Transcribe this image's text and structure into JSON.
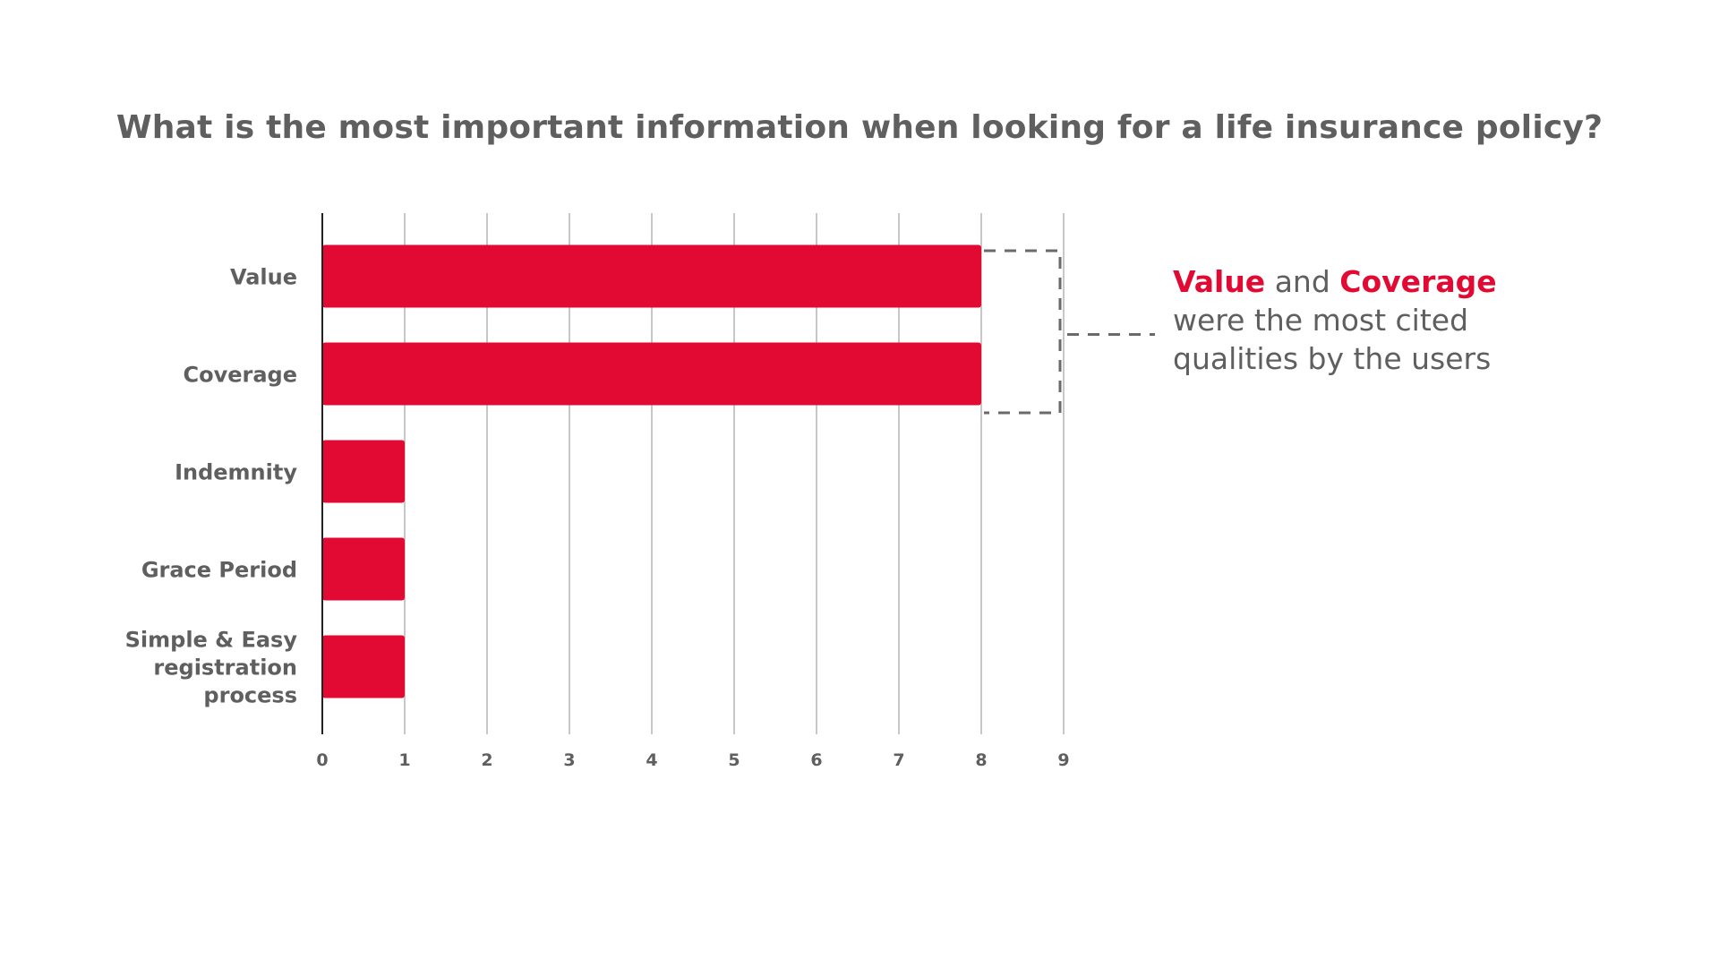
{
  "colors": {
    "bar": "#e20a33",
    "text": "#5f5f5f",
    "grid": "#c8c8c8",
    "axis": "#222222",
    "bracket": "#6a6a6a",
    "highlight": "#e20a33"
  },
  "chart_data": {
    "type": "bar",
    "orientation": "horizontal",
    "title": "What is the most important information when looking for a life insurance policy?",
    "xlabel": "",
    "ylabel": "",
    "categories": [
      "Value",
      "Coverage",
      "Indemnity",
      "Grace Period",
      "Simple & Easy registration process"
    ],
    "category_lines": [
      [
        "Value"
      ],
      [
        "Coverage"
      ],
      [
        "Indemnity"
      ],
      [
        "Grace Period"
      ],
      [
        "Simple & Easy",
        "registration",
        "process"
      ]
    ],
    "values": [
      8,
      8,
      1,
      1,
      1
    ],
    "xlim": [
      0,
      9
    ],
    "xticks": [
      "0",
      "1",
      "2",
      "3",
      "4",
      "5",
      "6",
      "7",
      "8",
      "9"
    ],
    "grid": true,
    "legend": "none"
  },
  "annotation": {
    "highlight_1": "Value",
    "connector": " and ",
    "highlight_2": "Coverage",
    "line_2": "were the most cited",
    "line_3": "qualities by the users"
  }
}
